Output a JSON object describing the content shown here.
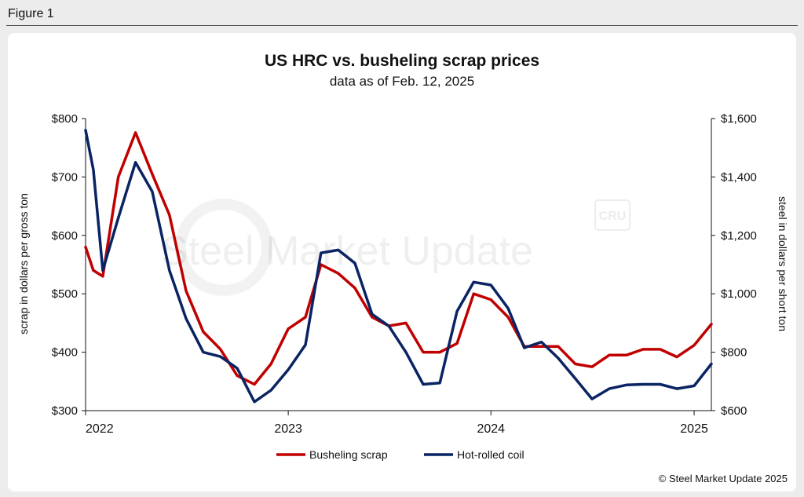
{
  "figure_label": "Figure 1",
  "credit": "© Steel Market Update 2025",
  "watermark": {
    "logo_text": "Steel Market Update",
    "badge_text": "CRU"
  },
  "colors": {
    "scrap": "#c00000",
    "hrc": "#0a2463",
    "axis": "#111111"
  },
  "chart_data": {
    "type": "line",
    "title": "US HRC vs. busheling scrap prices",
    "subtitle": "data as of Feb. 12, 2025",
    "xlabel": "",
    "ylabel_left": "scrap in dollars per gross ton",
    "ylabel_right": "steel in dollars per short ton",
    "x_start": "2022-01",
    "x_end": "2025-02",
    "x_ticks": [
      "2022",
      "2023",
      "2024",
      "2025"
    ],
    "y_left": {
      "lim": [
        300,
        800
      ],
      "ticks": [
        "$300",
        "$400",
        "$500",
        "$600",
        "$700",
        "$800"
      ]
    },
    "y_right": {
      "lim": [
        600,
        1600
      ],
      "ticks": [
        "$600",
        "$800",
        "$1,000",
        "$1,200",
        "$1,400",
        "$1,600"
      ]
    },
    "legend_position": "bottom-center",
    "series": [
      {
        "name": "Busheling scrap",
        "axis": "left",
        "points": [
          [
            "2022-01",
            580
          ],
          [
            "2022-01-15",
            540
          ],
          [
            "2022-02",
            530
          ],
          [
            "2022-03",
            700
          ],
          [
            "2022-04",
            776
          ],
          [
            "2022-05",
            705
          ],
          [
            "2022-06",
            635
          ],
          [
            "2022-07",
            505
          ],
          [
            "2022-08",
            435
          ],
          [
            "2022-09",
            405
          ],
          [
            "2022-10",
            360
          ],
          [
            "2022-11",
            345
          ],
          [
            "2022-12",
            380
          ],
          [
            "2023-01",
            440
          ],
          [
            "2023-02",
            460
          ],
          [
            "2023-03",
            550
          ],
          [
            "2023-04",
            535
          ],
          [
            "2023-05",
            510
          ],
          [
            "2023-06",
            460
          ],
          [
            "2023-07",
            445
          ],
          [
            "2023-08",
            450
          ],
          [
            "2023-09",
            400
          ],
          [
            "2023-10",
            400
          ],
          [
            "2023-11",
            415
          ],
          [
            "2023-12",
            500
          ],
          [
            "2024-01",
            490
          ],
          [
            "2024-02",
            460
          ],
          [
            "2024-03",
            410
          ],
          [
            "2024-04",
            410
          ],
          [
            "2024-05",
            410
          ],
          [
            "2024-06",
            380
          ],
          [
            "2024-07",
            375
          ],
          [
            "2024-08",
            395
          ],
          [
            "2024-09",
            395
          ],
          [
            "2024-10",
            405
          ],
          [
            "2024-11",
            405
          ],
          [
            "2024-12",
            392
          ],
          [
            "2025-01",
            412
          ],
          [
            "2025-02",
            448
          ]
        ]
      },
      {
        "name": "Hot-rolled coil",
        "axis": "right",
        "points": [
          [
            "2022-01",
            1560
          ],
          [
            "2022-01-15",
            1425
          ],
          [
            "2022-02",
            1080
          ],
          [
            "2022-03",
            1260
          ],
          [
            "2022-04",
            1450
          ],
          [
            "2022-05",
            1350
          ],
          [
            "2022-06",
            1080
          ],
          [
            "2022-07",
            915
          ],
          [
            "2022-08",
            800
          ],
          [
            "2022-09",
            785
          ],
          [
            "2022-10",
            745
          ],
          [
            "2022-11",
            630
          ],
          [
            "2022-12",
            670
          ],
          [
            "2023-01",
            740
          ],
          [
            "2023-02",
            825
          ],
          [
            "2023-03",
            1140
          ],
          [
            "2023-04",
            1150
          ],
          [
            "2023-05",
            1105
          ],
          [
            "2023-06",
            930
          ],
          [
            "2023-07",
            890
          ],
          [
            "2023-08",
            800
          ],
          [
            "2023-09",
            690
          ],
          [
            "2023-10",
            695
          ],
          [
            "2023-11",
            940
          ],
          [
            "2023-12",
            1040
          ],
          [
            "2024-01",
            1030
          ],
          [
            "2024-02",
            950
          ],
          [
            "2024-03",
            815
          ],
          [
            "2024-04",
            835
          ],
          [
            "2024-05",
            780
          ],
          [
            "2024-06",
            710
          ],
          [
            "2024-07",
            640
          ],
          [
            "2024-08",
            675
          ],
          [
            "2024-09",
            688
          ],
          [
            "2024-10",
            690
          ],
          [
            "2024-11",
            690
          ],
          [
            "2024-12",
            675
          ],
          [
            "2025-01",
            685
          ],
          [
            "2025-02",
            760
          ]
        ]
      }
    ]
  }
}
